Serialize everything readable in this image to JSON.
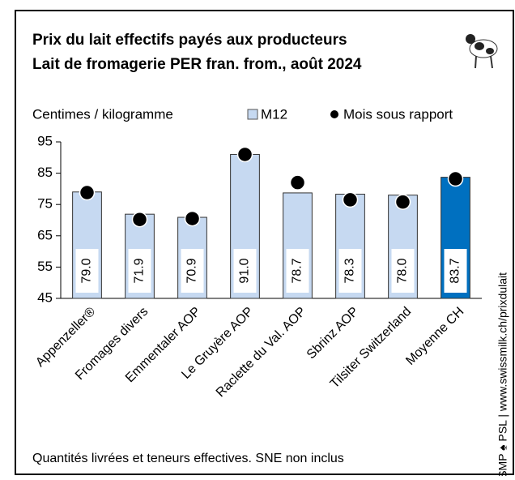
{
  "chart_data": {
    "type": "bar",
    "title": "Prix du lait effectifs payés aux producteurs",
    "subtitle": "Lait de fromagerie PER fran. from., août 2024",
    "y_label": "Centimes / kilogramme",
    "note": "Quantités livrées et teneurs effectives. SNE non inclus",
    "source": "© SMP ♠ PSL | www.swissmilk.ch/prixdulait",
    "categories": [
      "Appenzeller®",
      "Fromages divers",
      "Emmentaler AOP",
      "Le Gruyère AOP",
      "Raclette du Val. AOP",
      "Sbrinz AOP",
      "Tilsiter Switzerland",
      "Moyenne CH"
    ],
    "series": [
      {
        "name": "M12",
        "color": "#c6d9f1",
        "bar_colors": [
          "#c6d9f1",
          "#c6d9f1",
          "#c6d9f1",
          "#c6d9f1",
          "#c6d9f1",
          "#c6d9f1",
          "#c6d9f1",
          "#0070c0"
        ],
        "values": [
          79.0,
          71.9,
          70.9,
          91.0,
          78.7,
          78.3,
          78.0,
          83.7
        ],
        "value_labels": [
          "79.0",
          "71.9",
          "70.9",
          "91.0",
          "78.7",
          "78.3",
          "78.0",
          "83.7"
        ]
      },
      {
        "name": "Mois sous rapport",
        "color": "#000000",
        "values": [
          78.8,
          70.2,
          70.5,
          91.0,
          82.0,
          76.5,
          75.8,
          83.2
        ]
      }
    ],
    "ylim": [
      45,
      95
    ],
    "yticks": [
      45,
      55,
      65,
      75,
      85,
      95
    ]
  }
}
